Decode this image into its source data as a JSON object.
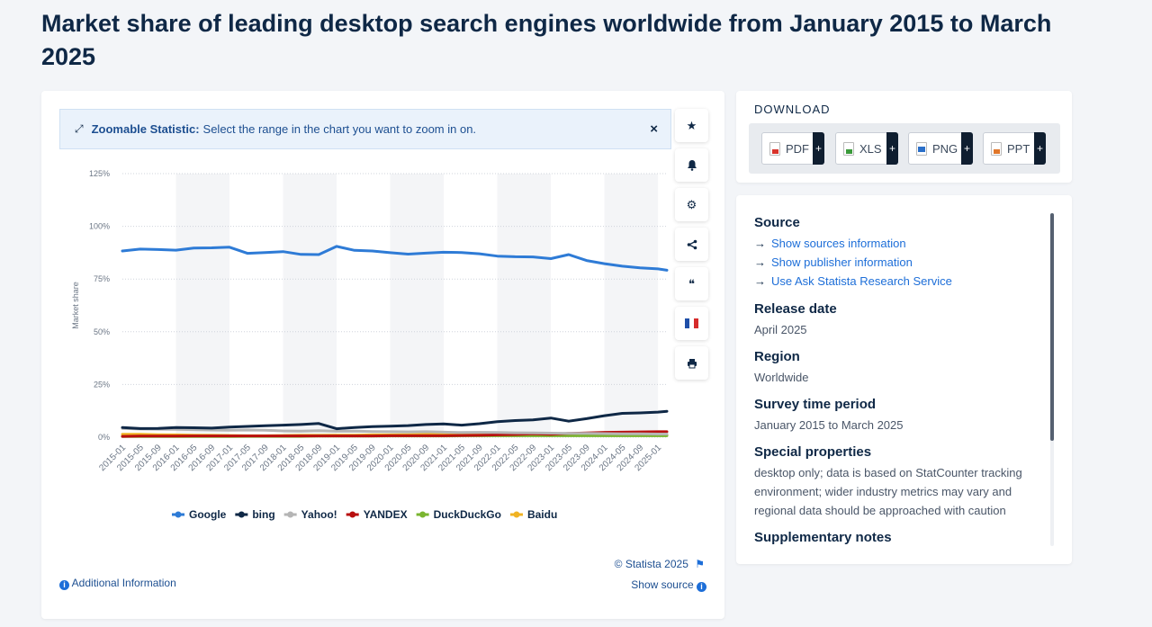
{
  "page": {
    "title": "Market share of leading desktop search engines worldwide from January 2015 to March 2025"
  },
  "zoom_banner": {
    "label": "Zoomable Statistic:",
    "text": "Select the range in the chart you want to zoom in on.",
    "close": "×"
  },
  "toolbar": {
    "icons": [
      "star-icon",
      "bell-icon",
      "gear-icon",
      "share-icon",
      "quote-icon",
      "france-flag-icon",
      "print-icon"
    ],
    "glyphs": {
      "star": "★",
      "bell": "🔔",
      "gear": "⚙",
      "share": "<",
      "quote": "❝",
      "print": "⎙"
    }
  },
  "footer": {
    "credit": "© Statista 2025",
    "flag_glyph": "⚑",
    "show_source": "Show source",
    "additional_info": "Additional Information"
  },
  "download": {
    "title": "DOWNLOAD",
    "buttons": [
      {
        "label": "PDF",
        "color": "#d9342b"
      },
      {
        "label": "XLS",
        "color": "#3a9a3a"
      },
      {
        "label": "PNG",
        "color": "#2a6fc9"
      },
      {
        "label": "PPT",
        "color": "#e0762a"
      }
    ],
    "plus": "+"
  },
  "info": {
    "source_heading": "Source",
    "links": [
      "Show sources information",
      "Show publisher information",
      "Use Ask Statista Research Service"
    ],
    "arrow": "→",
    "release_heading": "Release date",
    "release_value": "April 2025",
    "region_heading": "Region",
    "region_value": "Worldwide",
    "survey_heading": "Survey time period",
    "survey_value": "January 2015 to March 2025",
    "special_heading": "Special properties",
    "special_value": "desktop only; data is based on StatCounter tracking environment; wider industry metrics may vary and regional data should be approached with caution",
    "supp_heading": "Supplementary notes"
  },
  "chart_data": {
    "type": "line",
    "title": "",
    "ylabel": "Market share",
    "xlabel": "",
    "ylim": [
      0,
      125
    ],
    "y_ticks": [
      "0%",
      "25%",
      "50%",
      "75%",
      "100%",
      "125%"
    ],
    "grid": true,
    "legend_position": "bottom",
    "x_ticks": [
      "2015-01",
      "2015-05",
      "2015-09",
      "2016-01",
      "2016-05",
      "2016-09",
      "2017-01",
      "2017-05",
      "2017-09",
      "2018-01",
      "2018-05",
      "2018-09",
      "2019-01",
      "2019-05",
      "2019-09",
      "2020-01",
      "2020-05",
      "2020-09",
      "2021-01",
      "2021-05",
      "2021-09",
      "2022-01",
      "2022-05",
      "2022-09",
      "2023-01",
      "2023-05",
      "2023-09",
      "2024-01",
      "2024-05",
      "2024-09",
      "2025-01"
    ],
    "x": [
      "2015-01",
      "2015-05",
      "2015-09",
      "2016-01",
      "2016-05",
      "2016-09",
      "2017-01",
      "2017-05",
      "2017-09",
      "2018-01",
      "2018-05",
      "2018-09",
      "2019-01",
      "2019-05",
      "2019-09",
      "2020-01",
      "2020-05",
      "2020-09",
      "2021-01",
      "2021-05",
      "2021-09",
      "2022-01",
      "2022-05",
      "2022-09",
      "2023-01",
      "2023-05",
      "2023-09",
      "2024-01",
      "2024-05",
      "2024-09",
      "2025-01",
      "2025-03"
    ],
    "series": [
      {
        "name": "Google",
        "color": "#2e7bd6",
        "values": [
          88.3,
          89.2,
          89.0,
          88.7,
          89.7,
          89.8,
          90.1,
          87.2,
          87.6,
          88.0,
          86.7,
          86.6,
          90.5,
          88.6,
          88.3,
          87.5,
          86.8,
          87.3,
          87.7,
          87.6,
          87.0,
          85.9,
          85.6,
          85.5,
          84.7,
          86.6,
          83.8,
          82.3,
          81.1,
          80.3,
          79.8,
          79.2
        ]
      },
      {
        "name": "bing",
        "color": "#0f2846",
        "values": [
          4.6,
          4.1,
          4.2,
          4.6,
          4.5,
          4.3,
          4.8,
          5.1,
          5.4,
          5.7,
          6.0,
          6.5,
          4.0,
          4.6,
          5.0,
          5.2,
          5.5,
          6.0,
          6.3,
          5.7,
          6.4,
          7.4,
          7.9,
          8.2,
          9.1,
          7.6,
          8.8,
          10.2,
          11.3,
          11.5,
          11.9,
          12.3
        ]
      },
      {
        "name": "Yahoo!",
        "color": "#b5b5b5",
        "values": [
          4.2,
          3.9,
          3.8,
          3.7,
          3.6,
          3.4,
          3.3,
          3.4,
          3.3,
          3.0,
          2.9,
          3.1,
          2.8,
          2.9,
          2.7,
          2.6,
          2.5,
          2.6,
          2.4,
          2.2,
          2.3,
          2.2,
          2.1,
          2.0,
          1.9,
          1.8,
          1.8,
          1.7,
          1.6,
          1.6,
          1.5,
          1.5
        ]
      },
      {
        "name": "YANDEX",
        "color": "#b80f0f",
        "values": [
          0.4,
          0.5,
          0.5,
          0.5,
          0.6,
          0.6,
          0.6,
          0.6,
          0.6,
          0.6,
          0.6,
          0.6,
          0.6,
          0.6,
          0.6,
          0.7,
          0.7,
          0.7,
          0.7,
          0.8,
          0.9,
          1.1,
          1.3,
          1.6,
          1.4,
          1.8,
          2.0,
          2.3,
          2.4,
          2.5,
          2.6,
          2.6
        ]
      },
      {
        "name": "DuckDuckGo",
        "color": "#7ab530",
        "values": [
          0.3,
          0.3,
          0.3,
          0.3,
          0.3,
          0.3,
          0.3,
          0.4,
          0.4,
          0.4,
          0.4,
          0.5,
          0.5,
          0.5,
          0.5,
          0.6,
          0.6,
          0.6,
          0.6,
          0.7,
          0.7,
          0.7,
          0.7,
          0.7,
          0.7,
          0.7,
          0.7,
          0.7,
          0.7,
          0.7,
          0.7,
          0.7
        ]
      },
      {
        "name": "Baidu",
        "color": "#f0b323",
        "values": [
          1.4,
          1.4,
          1.2,
          1.1,
          1.0,
          0.9,
          0.8,
          0.7,
          0.7,
          0.8,
          0.9,
          0.9,
          1.0,
          1.0,
          1.1,
          1.1,
          1.2,
          1.3,
          1.4,
          1.3,
          1.2,
          1.1,
          1.2,
          1.1,
          1.1,
          1.0,
          1.0,
          1.0,
          1.0,
          0.9,
          0.9,
          0.9
        ]
      }
    ]
  }
}
